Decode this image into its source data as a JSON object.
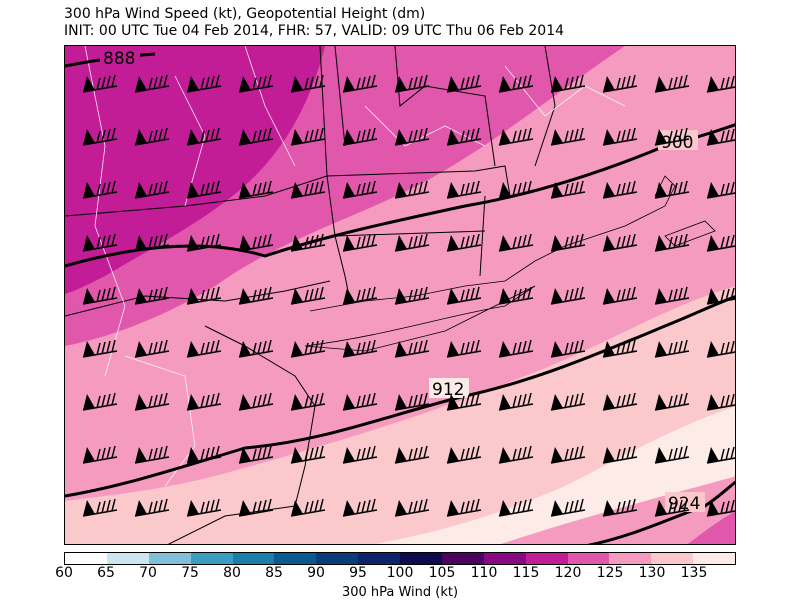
{
  "title": {
    "line1": "300 hPa Wind Speed (kt), Geopotential Height (dm)",
    "line2": "INIT: 00 UTC Tue 04 Feb 2014, FHR: 57, VALID: 09 UTC Thu 06 Feb 2014"
  },
  "contours": {
    "labels": [
      "888",
      "900",
      "912",
      "924"
    ]
  },
  "colorbar": {
    "label": "300 hPa Wind (kt)",
    "ticks": [
      "60",
      "65",
      "70",
      "75",
      "80",
      "85",
      "90",
      "95",
      "100",
      "105",
      "110",
      "115",
      "120",
      "125",
      "130",
      "135"
    ],
    "colors": [
      "#ffffff",
      "#cce6f0",
      "#7fbfd8",
      "#3a9cc0",
      "#1b7eaa",
      "#0a5a8f",
      "#083d7a",
      "#0b246a",
      "#0c0c4f",
      "#4b0260",
      "#880a82",
      "#c21d97",
      "#e157ac",
      "#f59bbf",
      "#fbc8cb",
      "#fdebe8"
    ]
  },
  "colors": {
    "kt115": "#c21d97",
    "kt120": "#e157ac",
    "kt125": "#f59bbf",
    "kt130": "#fbc8cb",
    "kt135": "#fdebe8"
  }
}
